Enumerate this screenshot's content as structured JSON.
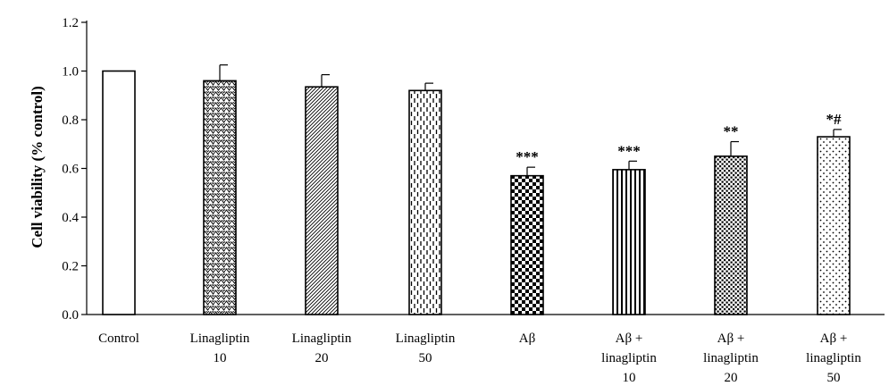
{
  "chart_data": {
    "type": "bar",
    "title": "",
    "xlabel": "",
    "ylabel": "Cell viability (% control)",
    "ylim": [
      0,
      1.2
    ],
    "yticks": [
      "0.0",
      "0.2",
      "0.4",
      "0.6",
      "0.8",
      "1.0",
      "1.2"
    ],
    "grid": false,
    "categories": [
      [
        "Control"
      ],
      [
        "Linagliptin",
        "10"
      ],
      [
        "Linagliptin",
        "20"
      ],
      [
        "Linagliptin",
        "50"
      ],
      [
        "Aβ"
      ],
      [
        "Aβ +",
        "linagliptin",
        "10"
      ],
      [
        "Aβ +",
        "linagliptin",
        "20"
      ],
      [
        "Aβ +",
        "linagliptin",
        "50"
      ]
    ],
    "values": [
      1.0,
      0.96,
      0.935,
      0.92,
      0.57,
      0.595,
      0.65,
      0.73
    ],
    "errors": [
      0.0,
      0.065,
      0.05,
      0.03,
      0.035,
      0.035,
      0.06,
      0.03
    ],
    "significance": [
      "",
      "",
      "",
      "",
      "***",
      "***",
      "**",
      "*#"
    ],
    "patterns": [
      "none",
      "zigzag",
      "diagonal-fine",
      "dashed-vertical",
      "checker",
      "vertical-stripes",
      "dense-dots",
      "sparse-dots"
    ]
  }
}
